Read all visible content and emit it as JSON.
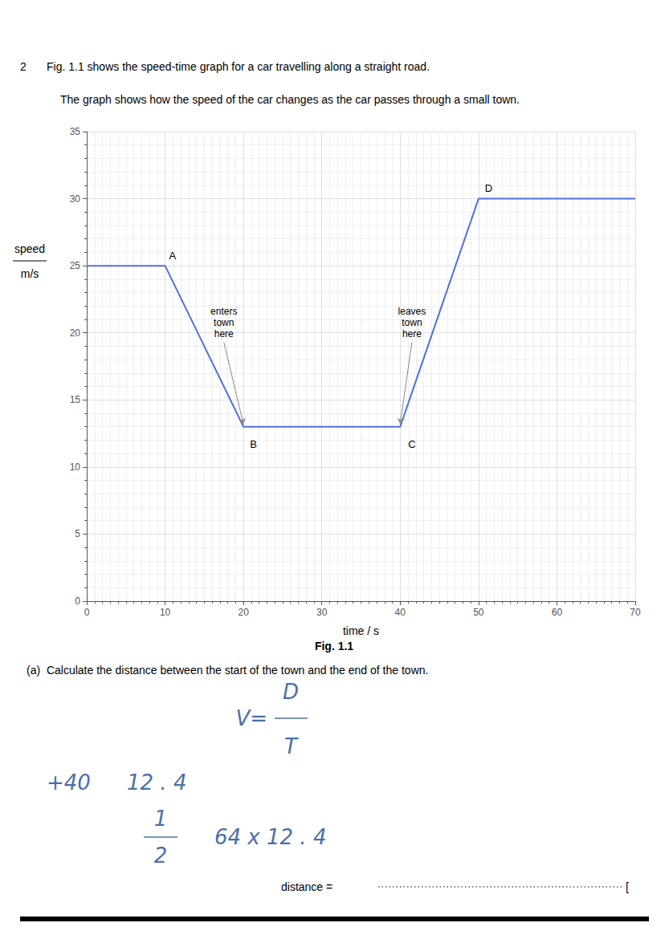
{
  "chart_data": {
    "type": "line",
    "number": "2",
    "title": "Fig. 1.1 shows the speed-time graph for a car travelling along a straight road.",
    "subtitle": "The graph shows how the speed of the car changes as the car passes through a small town.",
    "x": [
      0,
      10,
      20,
      40,
      50,
      70
    ],
    "values": [
      25,
      25,
      13,
      13,
      30,
      30
    ],
    "xlabel": "time / s",
    "ylabel": [
      "speed",
      "m/s"
    ],
    "xlim": [
      0,
      70
    ],
    "xticks": [
      0,
      10,
      20,
      30,
      40,
      50,
      60,
      70
    ],
    "ylim": [
      0,
      35
    ],
    "yticks": [
      0,
      5,
      10,
      15,
      20,
      25,
      30,
      35
    ],
    "grid": true,
    "point_labels": [
      {
        "text": "A",
        "x": 10,
        "y": 25
      },
      {
        "text": "B",
        "x": 20,
        "y": 13
      },
      {
        "text": "C",
        "x": 40,
        "y": 13
      },
      {
        "text": "D",
        "x": 50,
        "y": 30
      }
    ],
    "annotations": [
      {
        "text": "enters\ntown\nhere",
        "x": 20,
        "y": 13
      },
      {
        "text": "leaves\ntown\nhere",
        "x": 40,
        "y": 13
      }
    ],
    "caption": "Fig. 1.1",
    "question": "(a)  Calculate the distance between the start of the town and the end of the town.",
    "work": {
      "color": "#4a6fa8",
      "texts": [
        "V=",
        "D",
        "T",
        "+40",
        "12 . 4",
        "1",
        "2",
        "64 x 12 . 4"
      ]
    },
    "answer_label": "distance = ",
    "mark_bracket": "["
  }
}
